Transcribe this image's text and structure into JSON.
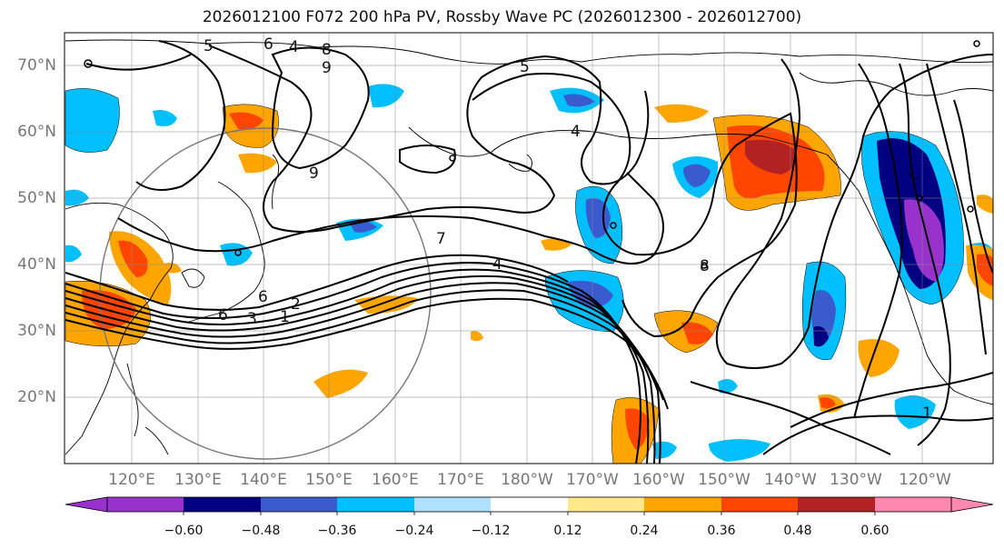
{
  "title": "2026012100 F072 200 hPa PV, Rossby Wave PC (2026012300 - 2026012700)",
  "lat_labels": [
    "70°N",
    "60°N",
    "50°N",
    "40°N",
    "30°N",
    "20°N"
  ],
  "lon_labels": [
    "120°E",
    "130°E",
    "140°E",
    "150°E",
    "160°E",
    "170°E",
    "180°W",
    "170°W",
    "160°W",
    "150°W",
    "140°W",
    "130°W",
    "120°W"
  ],
  "contour_labels": [
    "5",
    "6",
    "4",
    "8",
    "9",
    "7",
    "4",
    "2",
    "1",
    "3",
    "6",
    "5",
    "4",
    "1",
    "9",
    "8",
    "6"
  ],
  "colorbar": {
    "ticks": [
      "−0.60",
      "−0.48",
      "−0.36",
      "−0.24",
      "−0.12",
      "0.12",
      "0.24",
      "0.36",
      "0.48",
      "0.60"
    ],
    "colors": [
      "#9932cc",
      "#000080",
      "#3a5bcd",
      "#00bfff",
      "#b0e0ff",
      "#ffffff",
      "#ffe88a",
      "#ffa500",
      "#ff4500",
      "#b22222",
      "#ff88b0"
    ]
  }
}
